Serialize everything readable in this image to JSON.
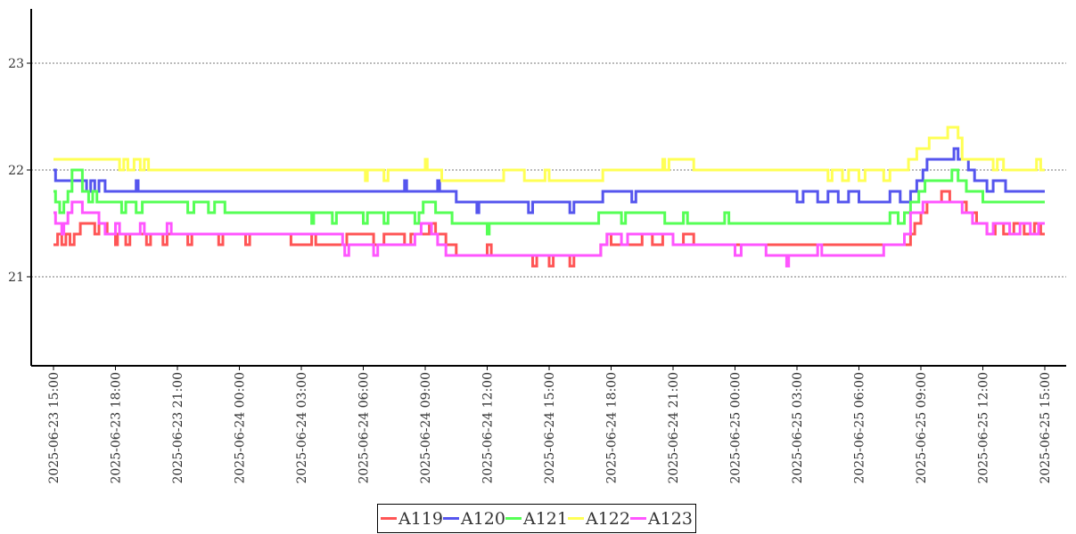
{
  "chart_data": {
    "type": "line",
    "title": "",
    "xlabel": "",
    "ylabel": "",
    "x_unit": "hours since 2025-06-23 15:00",
    "xlim": [
      0,
      48
    ],
    "ylim": [
      20.17,
      23.5
    ],
    "yticks": [
      21,
      22,
      23
    ],
    "ytick_labels": [
      "21",
      "22",
      "23"
    ],
    "grid": "horizontal dotted",
    "legend_position": "bottom-center",
    "xticks": [
      0,
      3,
      6,
      9,
      12,
      15,
      18,
      21,
      24,
      27,
      30,
      33,
      36,
      39,
      42,
      45,
      48
    ],
    "xtick_labels": [
      "2025-06-23 15:00",
      "2025-06-23 18:00",
      "2025-06-23 21:00",
      "2025-06-24 00:00",
      "2025-06-24 03:00",
      "2025-06-24 06:00",
      "2025-06-24 09:00",
      "2025-06-24 12:00",
      "2025-06-24 15:00",
      "2025-06-24 18:00",
      "2025-06-24 21:00",
      "2025-06-25 00:00",
      "2025-06-25 03:00",
      "2025-06-25 06:00",
      "2025-06-25 09:00",
      "2025-06-25 12:00",
      "2025-06-25 15:00"
    ],
    "series": [
      {
        "name": "A119",
        "color": "#ff5555",
        "points": [
          [
            0,
            21.3
          ],
          [
            0.2,
            21.4
          ],
          [
            0.4,
            21.3
          ],
          [
            0.6,
            21.4
          ],
          [
            0.8,
            21.3
          ],
          [
            1,
            21.4
          ],
          [
            1.3,
            21.5
          ],
          [
            2,
            21.4
          ],
          [
            2.2,
            21.5
          ],
          [
            2.6,
            21.4
          ],
          [
            3,
            21.3
          ],
          [
            3.1,
            21.4
          ],
          [
            3.5,
            21.3
          ],
          [
            3.7,
            21.4
          ],
          [
            4.5,
            21.3
          ],
          [
            4.7,
            21.4
          ],
          [
            5.3,
            21.3
          ],
          [
            5.5,
            21.4
          ],
          [
            6.5,
            21.3
          ],
          [
            6.7,
            21.4
          ],
          [
            8,
            21.3
          ],
          [
            8.2,
            21.4
          ],
          [
            9.3,
            21.3
          ],
          [
            9.5,
            21.4
          ],
          [
            11.5,
            21.3
          ],
          [
            12.5,
            21.4
          ],
          [
            12.7,
            21.3
          ],
          [
            14,
            21.3
          ],
          [
            14.2,
            21.4
          ],
          [
            15.5,
            21.3
          ],
          [
            16,
            21.4
          ],
          [
            17,
            21.3
          ],
          [
            17.3,
            21.4
          ],
          [
            18.2,
            21.5
          ],
          [
            18.5,
            21.4
          ],
          [
            19,
            21.3
          ],
          [
            19.5,
            21.2
          ],
          [
            21,
            21.3
          ],
          [
            21.2,
            21.2
          ],
          [
            23,
            21.2
          ],
          [
            23.2,
            21.1
          ],
          [
            23.4,
            21.2
          ],
          [
            24,
            21.1
          ],
          [
            24.2,
            21.2
          ],
          [
            25,
            21.1
          ],
          [
            25.2,
            21.2
          ],
          [
            26.5,
            21.3
          ],
          [
            26.8,
            21.4
          ],
          [
            27,
            21.3
          ],
          [
            28.5,
            21.4
          ],
          [
            29,
            21.3
          ],
          [
            29.5,
            21.4
          ],
          [
            30,
            21.3
          ],
          [
            30.5,
            21.4
          ],
          [
            31,
            21.3
          ],
          [
            41.5,
            21.4
          ],
          [
            41.7,
            21.5
          ],
          [
            42,
            21.6
          ],
          [
            42.3,
            21.7
          ],
          [
            43,
            21.8
          ],
          [
            43.4,
            21.7
          ],
          [
            44.2,
            21.6
          ],
          [
            44.7,
            21.5
          ],
          [
            45.2,
            21.4
          ],
          [
            45.6,
            21.5
          ],
          [
            46,
            21.4
          ],
          [
            46.5,
            21.5
          ],
          [
            47,
            21.4
          ],
          [
            47.5,
            21.5
          ],
          [
            47.8,
            21.4
          ],
          [
            48,
            21.4
          ]
        ]
      },
      {
        "name": "A120",
        "color": "#5555ee",
        "points": [
          [
            0,
            22.0
          ],
          [
            0.1,
            21.9
          ],
          [
            1.6,
            21.8
          ],
          [
            1.8,
            21.9
          ],
          [
            2,
            21.8
          ],
          [
            2.2,
            21.9
          ],
          [
            2.5,
            21.8
          ],
          [
            4,
            21.9
          ],
          [
            4.1,
            21.8
          ],
          [
            17,
            21.9
          ],
          [
            17.1,
            21.8
          ],
          [
            18.6,
            21.9
          ],
          [
            18.7,
            21.8
          ],
          [
            19.5,
            21.7
          ],
          [
            20.5,
            21.6
          ],
          [
            20.6,
            21.7
          ],
          [
            23,
            21.6
          ],
          [
            23.2,
            21.7
          ],
          [
            25,
            21.6
          ],
          [
            25.2,
            21.7
          ],
          [
            26.6,
            21.8
          ],
          [
            28,
            21.7
          ],
          [
            28.2,
            21.8
          ],
          [
            36,
            21.7
          ],
          [
            36.3,
            21.8
          ],
          [
            37,
            21.7
          ],
          [
            37.5,
            21.8
          ],
          [
            38,
            21.7
          ],
          [
            38.5,
            21.8
          ],
          [
            39,
            21.7
          ],
          [
            40.5,
            21.8
          ],
          [
            41,
            21.7
          ],
          [
            41.5,
            21.8
          ],
          [
            41.8,
            21.9
          ],
          [
            42.1,
            22.0
          ],
          [
            42.3,
            22.1
          ],
          [
            43.6,
            22.2
          ],
          [
            43.8,
            22.1
          ],
          [
            44.3,
            22.0
          ],
          [
            44.6,
            21.9
          ],
          [
            45.2,
            21.8
          ],
          [
            45.5,
            21.9
          ],
          [
            46.1,
            21.8
          ],
          [
            48,
            21.8
          ]
        ]
      },
      {
        "name": "A121",
        "color": "#55ff55",
        "points": [
          [
            0,
            21.8
          ],
          [
            0.1,
            21.7
          ],
          [
            0.3,
            21.6
          ],
          [
            0.5,
            21.7
          ],
          [
            0.7,
            21.8
          ],
          [
            0.9,
            22.0
          ],
          [
            1.4,
            21.8
          ],
          [
            1.7,
            21.7
          ],
          [
            1.9,
            21.8
          ],
          [
            2.1,
            21.7
          ],
          [
            3.3,
            21.6
          ],
          [
            3.5,
            21.7
          ],
          [
            4,
            21.6
          ],
          [
            4.3,
            21.7
          ],
          [
            6.5,
            21.6
          ],
          [
            6.8,
            21.7
          ],
          [
            7.5,
            21.6
          ],
          [
            7.8,
            21.7
          ],
          [
            8.3,
            21.6
          ],
          [
            12.5,
            21.5
          ],
          [
            12.6,
            21.6
          ],
          [
            13.5,
            21.5
          ],
          [
            13.7,
            21.6
          ],
          [
            15,
            21.5
          ],
          [
            15.2,
            21.6
          ],
          [
            16,
            21.5
          ],
          [
            16.2,
            21.6
          ],
          [
            17.5,
            21.5
          ],
          [
            17.7,
            21.6
          ],
          [
            17.9,
            21.7
          ],
          [
            18.5,
            21.6
          ],
          [
            19.3,
            21.5
          ],
          [
            21,
            21.4
          ],
          [
            21.1,
            21.5
          ],
          [
            26.4,
            21.6
          ],
          [
            27.5,
            21.5
          ],
          [
            27.7,
            21.6
          ],
          [
            29.6,
            21.5
          ],
          [
            30.5,
            21.6
          ],
          [
            30.7,
            21.5
          ],
          [
            32.5,
            21.6
          ],
          [
            32.7,
            21.5
          ],
          [
            40.5,
            21.6
          ],
          [
            40.9,
            21.5
          ],
          [
            41.2,
            21.6
          ],
          [
            41.5,
            21.7
          ],
          [
            41.9,
            21.8
          ],
          [
            42.2,
            21.9
          ],
          [
            43.5,
            22.0
          ],
          [
            43.8,
            21.9
          ],
          [
            44.2,
            21.8
          ],
          [
            45,
            21.7
          ],
          [
            48,
            21.7
          ]
        ]
      },
      {
        "name": "A122",
        "color": "#ffff55",
        "points": [
          [
            0,
            22.1
          ],
          [
            3.2,
            22.0
          ],
          [
            3.4,
            22.1
          ],
          [
            3.6,
            22.0
          ],
          [
            3.9,
            22.1
          ],
          [
            4.2,
            22.0
          ],
          [
            4.4,
            22.1
          ],
          [
            4.6,
            22.0
          ],
          [
            15.1,
            21.9
          ],
          [
            15.2,
            22.0
          ],
          [
            16,
            21.9
          ],
          [
            16.2,
            22.0
          ],
          [
            18,
            22.1
          ],
          [
            18.1,
            22.0
          ],
          [
            18.8,
            21.9
          ],
          [
            21.8,
            22.0
          ],
          [
            22.8,
            21.9
          ],
          [
            23.8,
            22.0
          ],
          [
            24,
            21.9
          ],
          [
            26.6,
            22.0
          ],
          [
            29.5,
            22.1
          ],
          [
            29.6,
            22.0
          ],
          [
            29.8,
            22.1
          ],
          [
            31,
            22.0
          ],
          [
            37.5,
            21.9
          ],
          [
            37.7,
            22.0
          ],
          [
            38.2,
            21.9
          ],
          [
            38.5,
            22.0
          ],
          [
            39,
            21.9
          ],
          [
            39.3,
            22.0
          ],
          [
            40.2,
            21.9
          ],
          [
            40.5,
            22.0
          ],
          [
            41.4,
            22.1
          ],
          [
            41.8,
            22.2
          ],
          [
            42.4,
            22.3
          ],
          [
            43.3,
            22.4
          ],
          [
            43.8,
            22.3
          ],
          [
            44,
            22.1
          ],
          [
            45.5,
            22.0
          ],
          [
            45.7,
            22.1
          ],
          [
            46,
            22.0
          ],
          [
            47.6,
            22.1
          ],
          [
            47.8,
            22.0
          ],
          [
            48,
            22.0
          ]
        ]
      },
      {
        "name": "A123",
        "color": "#ff55ff",
        "points": [
          [
            0,
            21.6
          ],
          [
            0.1,
            21.5
          ],
          [
            0.4,
            21.4
          ],
          [
            0.5,
            21.5
          ],
          [
            0.7,
            21.6
          ],
          [
            0.9,
            21.7
          ],
          [
            1.4,
            21.6
          ],
          [
            2.2,
            21.5
          ],
          [
            2.5,
            21.4
          ],
          [
            3,
            21.5
          ],
          [
            3.2,
            21.4
          ],
          [
            4.2,
            21.5
          ],
          [
            4.4,
            21.4
          ],
          [
            5.5,
            21.5
          ],
          [
            5.7,
            21.4
          ],
          [
            8.5,
            21.4
          ],
          [
            14,
            21.3
          ],
          [
            14.1,
            21.2
          ],
          [
            14.3,
            21.3
          ],
          [
            15.5,
            21.2
          ],
          [
            15.7,
            21.3
          ],
          [
            17.5,
            21.4
          ],
          [
            17.8,
            21.5
          ],
          [
            18.3,
            21.4
          ],
          [
            18.6,
            21.3
          ],
          [
            19,
            21.2
          ],
          [
            24,
            21.2
          ],
          [
            26.5,
            21.3
          ],
          [
            26.8,
            21.4
          ],
          [
            27.5,
            21.3
          ],
          [
            27.8,
            21.4
          ],
          [
            30,
            21.3
          ],
          [
            33,
            21.2
          ],
          [
            33.3,
            21.3
          ],
          [
            34.5,
            21.2
          ],
          [
            35.5,
            21.1
          ],
          [
            35.6,
            21.2
          ],
          [
            37,
            21.3
          ],
          [
            37.2,
            21.2
          ],
          [
            40.2,
            21.3
          ],
          [
            41.2,
            21.4
          ],
          [
            41.5,
            21.6
          ],
          [
            42.1,
            21.7
          ],
          [
            44,
            21.6
          ],
          [
            44.5,
            21.5
          ],
          [
            45.2,
            21.4
          ],
          [
            45.5,
            21.5
          ],
          [
            46.3,
            21.4
          ],
          [
            46.8,
            21.5
          ],
          [
            47.3,
            21.4
          ],
          [
            47.7,
            21.5
          ],
          [
            48,
            21.5
          ]
        ]
      }
    ]
  }
}
